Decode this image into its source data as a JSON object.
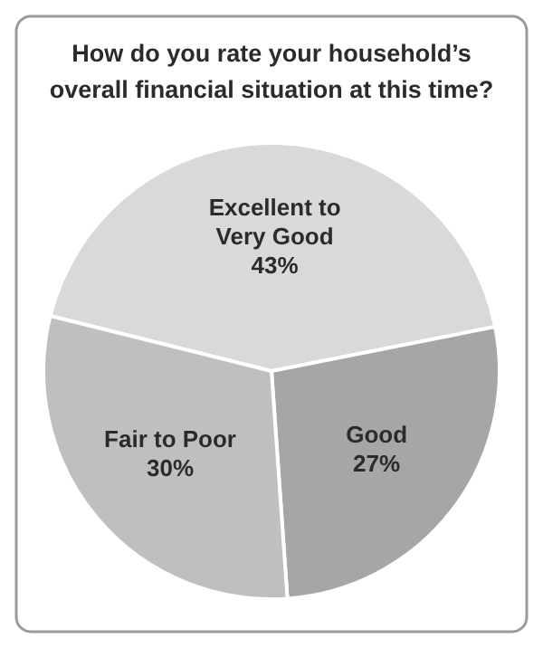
{
  "chart_data": {
    "type": "pie",
    "title": "How do you rate your household’s overall financial situation at this time?",
    "categories": [
      "Excellent to Very Good",
      "Good",
      "Fair to Poor"
    ],
    "values": [
      43,
      27,
      30
    ],
    "colors": [
      "#d9d9d9",
      "#a6a6a6",
      "#bfbfbf"
    ],
    "value_labels": [
      "43%",
      "27%",
      "30%"
    ]
  }
}
